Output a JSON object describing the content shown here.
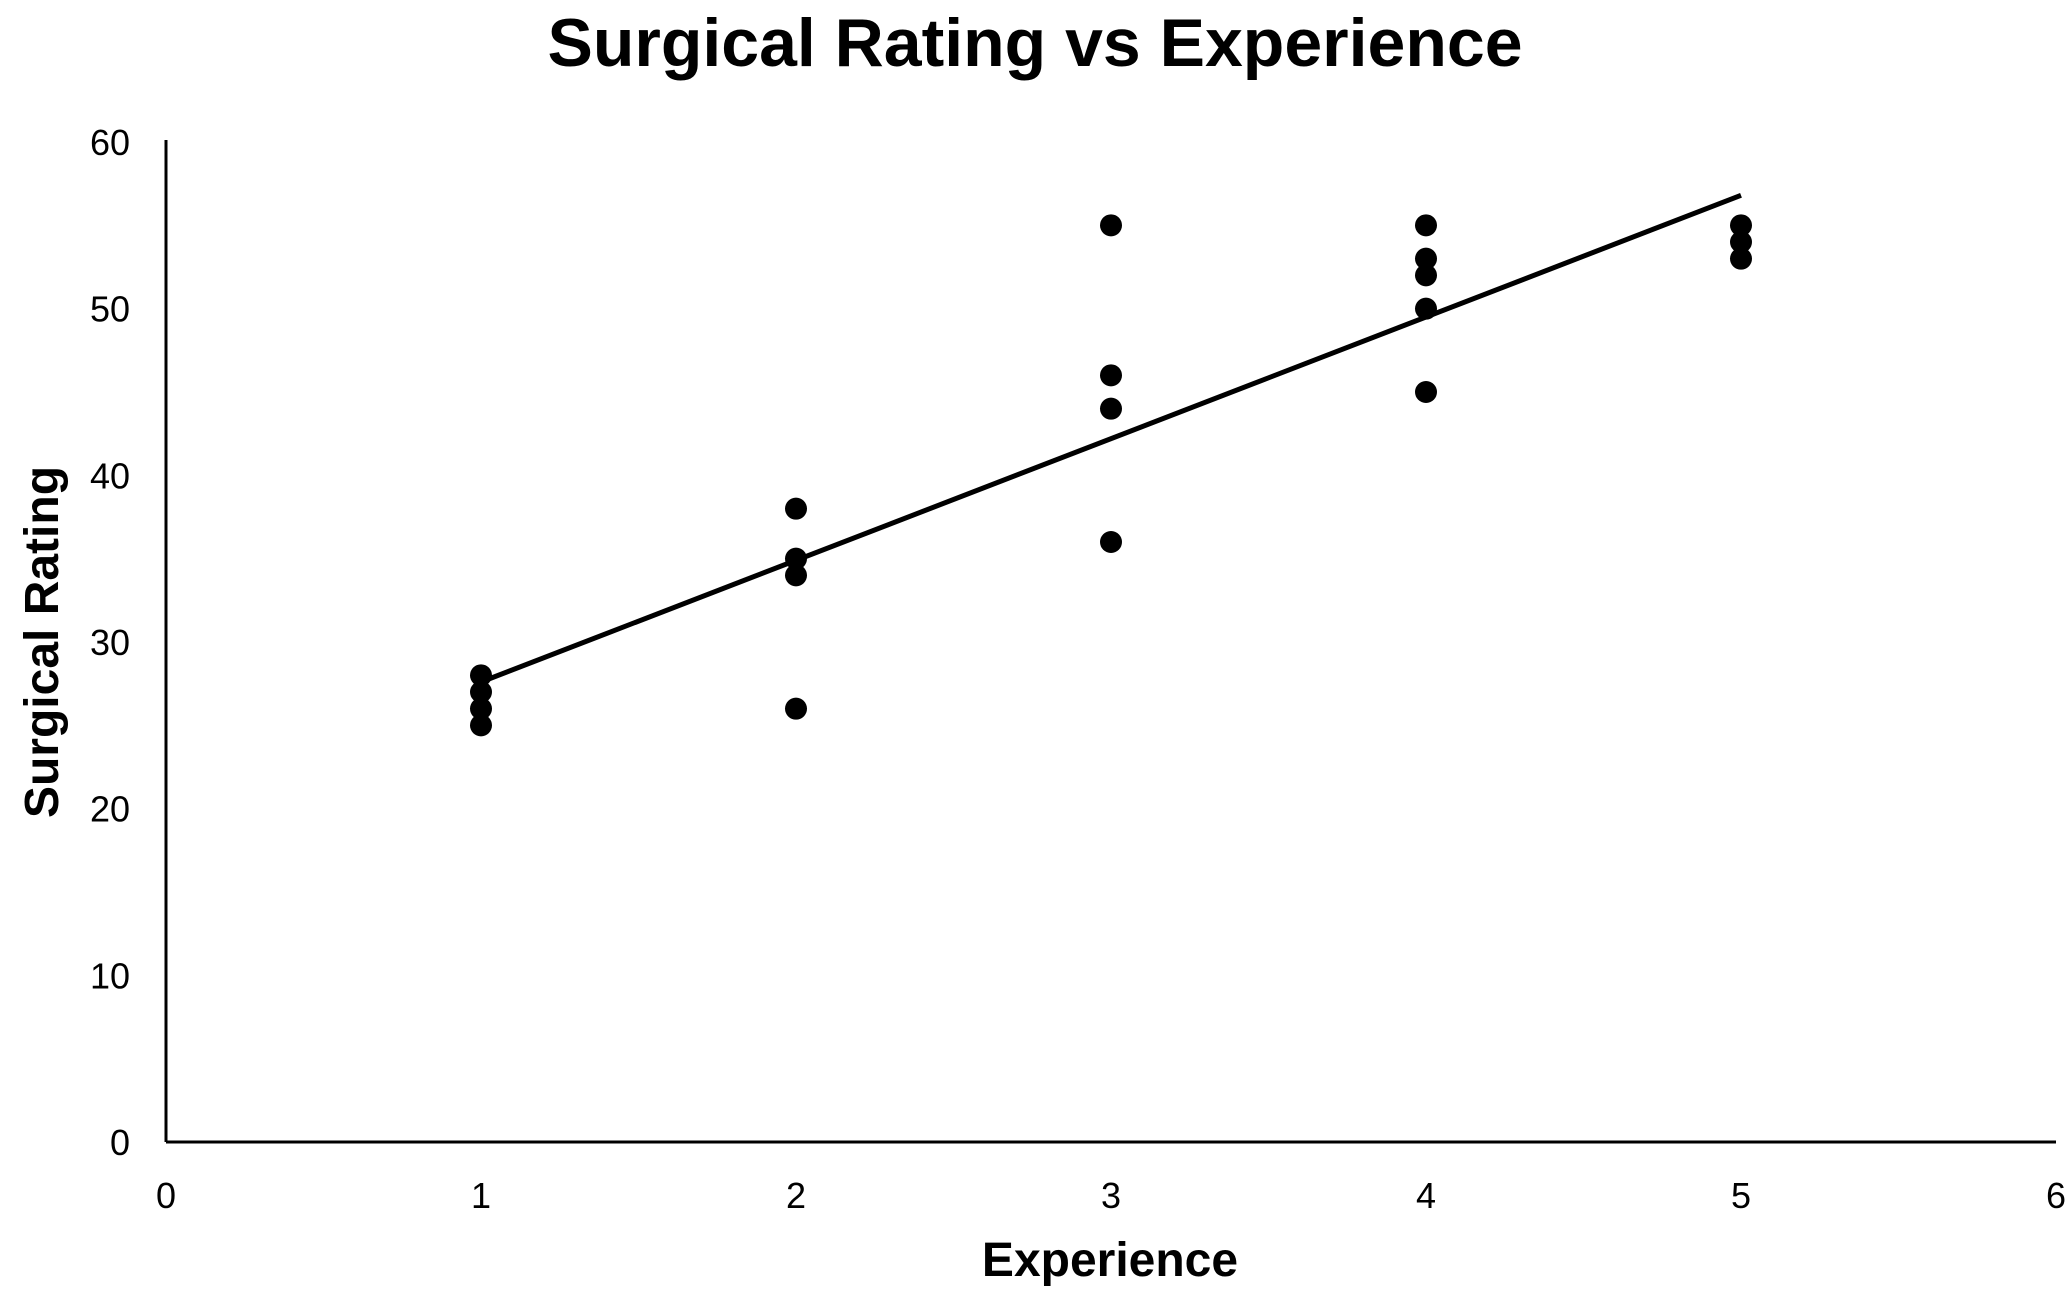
{
  "chart_data": {
    "type": "scatter",
    "title": "Surgical Rating vs Experience",
    "xlabel": "Experience",
    "ylabel": "Surgical Rating",
    "xlim": [
      0,
      6
    ],
    "ylim": [
      0,
      60
    ],
    "x_ticks": [
      "0",
      "1",
      "2",
      "3",
      "4",
      "5",
      "6"
    ],
    "y_ticks": [
      "0",
      "10",
      "20",
      "30",
      "40",
      "50",
      "60"
    ],
    "grid": false,
    "legend": "none",
    "marker_color": "#000000",
    "series": [
      {
        "points": [
          {
            "x": 1,
            "y": 28
          },
          {
            "x": 1,
            "y": 27
          },
          {
            "x": 1,
            "y": 26
          },
          {
            "x": 1,
            "y": 25
          },
          {
            "x": 2,
            "y": 38
          },
          {
            "x": 2,
            "y": 35
          },
          {
            "x": 2,
            "y": 34
          },
          {
            "x": 2,
            "y": 26
          },
          {
            "x": 3,
            "y": 55
          },
          {
            "x": 3,
            "y": 46
          },
          {
            "x": 3,
            "y": 44
          },
          {
            "x": 3,
            "y": 36
          },
          {
            "x": 4,
            "y": 55
          },
          {
            "x": 4,
            "y": 53
          },
          {
            "x": 4,
            "y": 52
          },
          {
            "x": 4,
            "y": 50
          },
          {
            "x": 4,
            "y": 45
          },
          {
            "x": 5,
            "y": 55
          },
          {
            "x": 5,
            "y": 54
          },
          {
            "x": 5,
            "y": 53
          }
        ]
      }
    ],
    "trendline": {
      "type": "linear",
      "from": {
        "x": 1,
        "y": 27.6
      },
      "to": {
        "x": 5,
        "y": 56.8
      }
    }
  }
}
